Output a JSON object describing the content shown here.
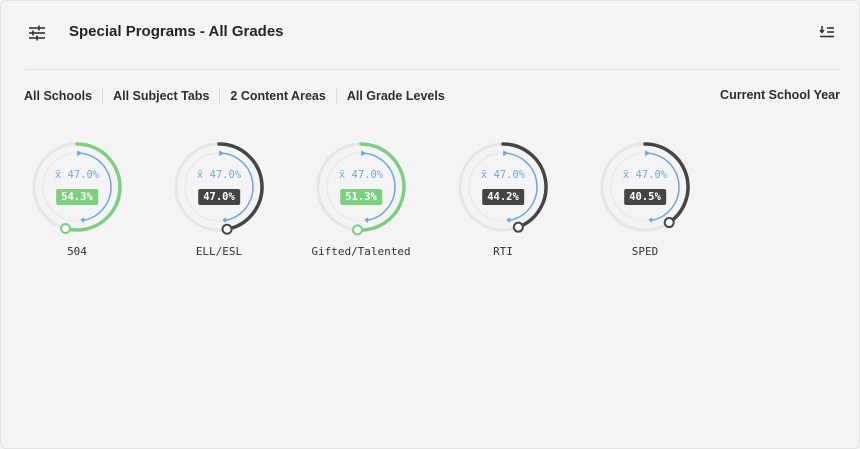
{
  "header": {
    "title": "Special Programs - All Grades",
    "filter_icon": "sliders-icon",
    "sort_icon": "sort-list-icon"
  },
  "filters": {
    "schools": "All Schools",
    "subject_tabs": "All Subject Tabs",
    "content_areas": "2 Content Areas",
    "grade_levels": "All Grade Levels",
    "school_year": "Current School Year"
  },
  "colors": {
    "above_avg": "#7ccf7f",
    "below_avg": "#454545",
    "average_ring": "#6aa8e0",
    "track": "#e6e6e8"
  },
  "gauges": [
    {
      "label": "504",
      "value": 54.3,
      "value_text": "54.3%",
      "average": 47.0,
      "average_text": "x̄ 47.0%",
      "status": "above"
    },
    {
      "label": "ELL/ESL",
      "value": 47.0,
      "value_text": "47.0%",
      "average": 47.0,
      "average_text": "x̄ 47.0%",
      "status": "below"
    },
    {
      "label": "Gifted/Talented",
      "value": 51.3,
      "value_text": "51.3%",
      "average": 47.0,
      "average_text": "x̄ 47.0%",
      "status": "above"
    },
    {
      "label": "RTI",
      "value": 44.2,
      "value_text": "44.2%",
      "average": 47.0,
      "average_text": "x̄ 47.0%",
      "status": "below"
    },
    {
      "label": "SPED",
      "value": 40.5,
      "value_text": "40.5%",
      "average": 47.0,
      "average_text": "x̄ 47.0%",
      "status": "below"
    }
  ]
}
